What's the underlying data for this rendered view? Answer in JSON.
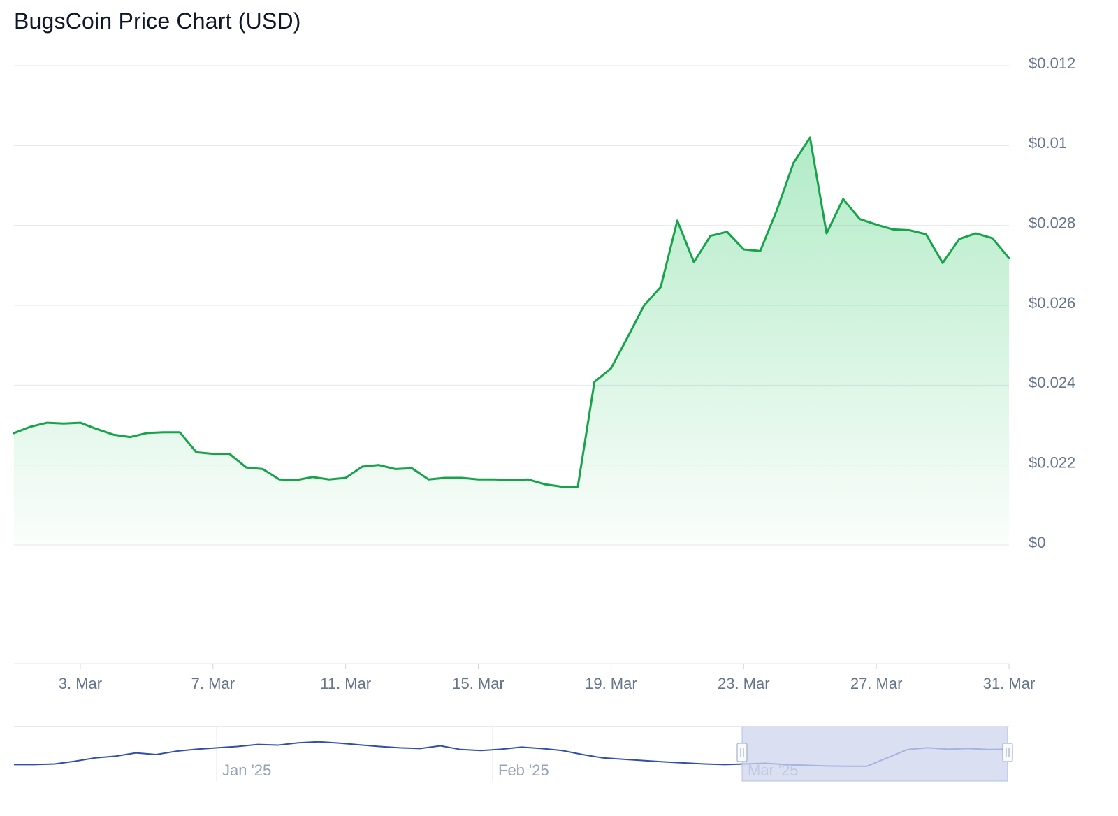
{
  "title": "BugsCoin Price Chart (USD)",
  "colors": {
    "line": "#16a34a",
    "area_top": "#22c55e",
    "grid": "#e5e7eb",
    "axis_text": "#64748b",
    "navigator_line": "#2f4fa8",
    "navigator_mask": "#cdd6ee",
    "navigator_handle": "#f8fafc"
  },
  "chart_data": {
    "type": "area",
    "title": "BugsCoin Price Chart (USD)",
    "xlabel": "",
    "ylabel": "",
    "y_ticks": [
      {
        "label": "$0",
        "position": 0
      },
      {
        "label": "$0.022",
        "position": 1
      },
      {
        "label": "$0.024",
        "position": 2
      },
      {
        "label": "$0.026",
        "position": 3
      },
      {
        "label": "$0.028",
        "position": 4
      },
      {
        "label": "$0.01",
        "position": 5
      },
      {
        "label": "$0.012",
        "position": 6
      }
    ],
    "x_ticks": [
      "3. Mar",
      "7. Mar",
      "11. Mar",
      "15. Mar",
      "19. Mar",
      "23. Mar",
      "27. Mar",
      "31. Mar"
    ],
    "x_range": [
      "2025-03-01",
      "2025-03-31"
    ],
    "y_range": [
      0,
      6
    ],
    "grid": true,
    "series": [
      {
        "x": [
          "2025-03-01",
          "2025-03-01T12",
          "2025-03-02",
          "2025-03-02T12",
          "2025-03-03",
          "2025-03-03T12",
          "2025-03-04",
          "2025-03-04T12",
          "2025-03-05",
          "2025-03-05T12",
          "2025-03-06",
          "2025-03-06T12",
          "2025-03-07",
          "2025-03-07T12",
          "2025-03-08",
          "2025-03-08T12",
          "2025-03-09",
          "2025-03-09T12",
          "2025-03-10",
          "2025-03-10T12",
          "2025-03-11",
          "2025-03-11T12",
          "2025-03-12",
          "2025-03-12T12",
          "2025-03-13",
          "2025-03-13T12",
          "2025-03-14",
          "2025-03-14T12",
          "2025-03-15",
          "2025-03-15T12",
          "2025-03-16",
          "2025-03-16T12",
          "2025-03-17",
          "2025-03-17T12",
          "2025-03-18",
          "2025-03-18T12",
          "2025-03-19",
          "2025-03-19T12",
          "2025-03-20",
          "2025-03-20T12",
          "2025-03-21",
          "2025-03-21T12",
          "2025-03-22",
          "2025-03-22T12",
          "2025-03-23",
          "2025-03-23T12",
          "2025-03-24",
          "2025-03-24T12",
          "2025-03-25",
          "2025-03-25T12",
          "2025-03-26",
          "2025-03-26T12",
          "2025-03-27",
          "2025-03-27T12",
          "2025-03-28",
          "2025-03-28T12",
          "2025-03-29",
          "2025-03-29T12",
          "2025-03-30",
          "2025-03-30T12",
          "2025-03-31"
        ],
        "y": [
          1.4,
          1.48,
          1.53,
          1.52,
          1.53,
          1.45,
          1.38,
          1.35,
          1.4,
          1.41,
          1.41,
          1.16,
          1.14,
          1.14,
          0.97,
          0.95,
          0.82,
          0.81,
          0.85,
          0.82,
          0.84,
          0.98,
          1.0,
          0.95,
          0.96,
          0.82,
          0.84,
          0.84,
          0.82,
          0.82,
          0.81,
          0.82,
          0.76,
          0.73,
          0.73,
          2.04,
          2.21,
          2.6,
          3.0,
          3.23,
          4.06,
          3.54,
          3.87,
          3.92,
          3.7,
          3.68,
          4.19,
          4.78,
          5.1,
          3.9,
          4.33,
          4.08,
          4.01,
          3.95,
          3.94,
          3.89,
          3.53,
          3.83,
          3.9,
          3.84,
          3.59
        ]
      }
    ]
  },
  "navigator": {
    "labels": [
      "Jan '25",
      "Feb '25",
      "Mar '25"
    ],
    "series_y": [
      0.2,
      0.2,
      0.22,
      0.3,
      0.4,
      0.45,
      0.55,
      0.5,
      0.6,
      0.66,
      0.7,
      0.74,
      0.8,
      0.78,
      0.85,
      0.88,
      0.84,
      0.79,
      0.74,
      0.7,
      0.68,
      0.76,
      0.65,
      0.62,
      0.66,
      0.72,
      0.68,
      0.62,
      0.5,
      0.4,
      0.36,
      0.32,
      0.28,
      0.25,
      0.22,
      0.2,
      0.22,
      0.24,
      0.2,
      0.18,
      0.16,
      0.15,
      0.15,
      0.4,
      0.65,
      0.7,
      0.66,
      0.68,
      0.65,
      0.66
    ],
    "selection": "Mar '25"
  }
}
